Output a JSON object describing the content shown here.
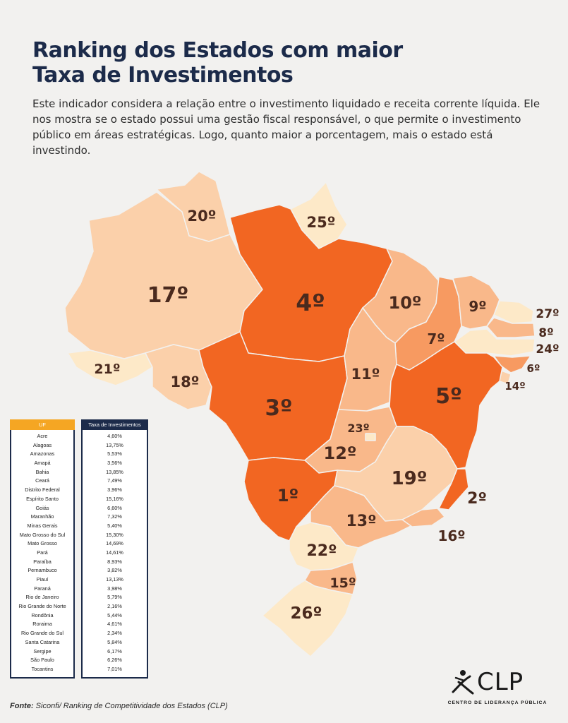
{
  "title_line1": "Ranking dos Estados com maior",
  "title_line2": "Taxa de Investimentos",
  "description": "Este indicador considera a relação entre o investimento liquidado e receita corrente líquida. Ele nos mostra se o estado possui uma gestão fiscal responsável, o que permite o investimento público em áreas estratégicas. Logo, quanto maior a porcentagem, mais o estado está investindo.",
  "colors": {
    "title": "#1c2b4a",
    "rank_1_5": "#f26622",
    "rank_6_10": "#f79a61",
    "rank_11_16": "#f9b88a",
    "rank_17_21": "#fbd0aa",
    "rank_22_27": "#fde9c8"
  },
  "map": {
    "labels": {
      "roraima": "20º",
      "amapa": "25º",
      "amazonas": "17º",
      "para": "4º",
      "maranhao": "10º",
      "ceara": "9º",
      "rio_grande_do_norte": "27º",
      "paraiba": "8º",
      "pernambuco": "24º",
      "alagoas": "6º",
      "sergipe": "14º",
      "piaui": "7º",
      "acre": "21º",
      "rondonia": "18º",
      "tocantins": "11º",
      "bahia": "5º",
      "mato_grosso": "3º",
      "distrito_federal": "23º",
      "goias": "12º",
      "minas_gerais": "19º",
      "mato_grosso_do_sul": "1º",
      "espirito_santo": "2º",
      "sao_paulo": "13º",
      "rio_de_janeiro": "16º",
      "parana": "22º",
      "santa_catarina": "15º",
      "rio_grande_do_sul": "26º"
    }
  },
  "table": {
    "header_uf": "UF",
    "header_taxa": "Taxa de Investimentos",
    "rows": [
      {
        "uf": "Acre",
        "taxa": "4,60%"
      },
      {
        "uf": "Alagoas",
        "taxa": "13,75%"
      },
      {
        "uf": "Amazonas",
        "taxa": "5,53%"
      },
      {
        "uf": "Amapá",
        "taxa": "3,56%"
      },
      {
        "uf": "Bahia",
        "taxa": "13,85%"
      },
      {
        "uf": "Ceará",
        "taxa": "7,49%"
      },
      {
        "uf": "Distrito Federal",
        "taxa": "3,96%"
      },
      {
        "uf": "Espírito Santo",
        "taxa": "15,16%"
      },
      {
        "uf": "Goiás",
        "taxa": "6,60%"
      },
      {
        "uf": "Maranhão",
        "taxa": "7,32%"
      },
      {
        "uf": "Minas Gerais",
        "taxa": "5,40%"
      },
      {
        "uf": "Mato Grosso do Sul",
        "taxa": "15,30%"
      },
      {
        "uf": "Mato Grosso",
        "taxa": "14,69%"
      },
      {
        "uf": "Pará",
        "taxa": "14,61%"
      },
      {
        "uf": "Paraíba",
        "taxa": "8,93%"
      },
      {
        "uf": "Pernambuco",
        "taxa": "3,82%"
      },
      {
        "uf": "Piauí",
        "taxa": "13,13%"
      },
      {
        "uf": "Paraná",
        "taxa": "3,98%"
      },
      {
        "uf": "Rio de Janeiro",
        "taxa": "5,79%"
      },
      {
        "uf": "Rio Grande do Norte",
        "taxa": "2,16%"
      },
      {
        "uf": "Rondônia",
        "taxa": "5,44%"
      },
      {
        "uf": "Roraima",
        "taxa": "4,61%"
      },
      {
        "uf": "Rio Grande do Sul",
        "taxa": "2,34%"
      },
      {
        "uf": "Santa Catarina",
        "taxa": "5,84%"
      },
      {
        "uf": "Sergipe",
        "taxa": "6,17%"
      },
      {
        "uf": "São Paulo",
        "taxa": "6,26%"
      },
      {
        "uf": "Tocantins",
        "taxa": "7,01%"
      }
    ]
  },
  "source_label": "Fonte:",
  "source_text": "Siconfi/ Ranking de Competitividade dos Estados (CLP)",
  "logo": {
    "name": "CLP",
    "subtitle": "CENTRO DE LIDERANÇA PÚBLICA",
    "icon": "clp-logo-icon"
  }
}
